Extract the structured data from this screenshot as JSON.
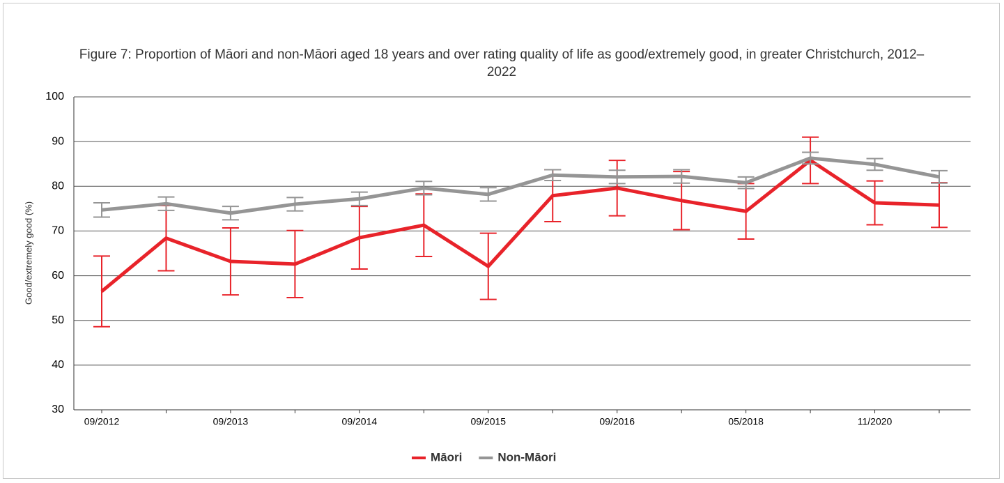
{
  "chart_data": {
    "type": "line",
    "title": "Figure 7: Proportion of Māori and non-Māori aged 18 years and over rating quality of life as good/extremely good, in greater Christchurch, 2012–2022",
    "ylabel": "Good/extremely good (%)",
    "categories": [
      "09/2012",
      null,
      "09/2013",
      null,
      "09/2014",
      null,
      "09/2015",
      null,
      "09/2016",
      null,
      "05/2018",
      null,
      "11/2020",
      null
    ],
    "ylim": [
      30,
      100
    ],
    "yticks": [
      30,
      40,
      50,
      60,
      70,
      80,
      90,
      100
    ],
    "grid": true,
    "legend": "bottom",
    "series": [
      {
        "name": "Māori",
        "color": "#e8232a",
        "values": [
          56.5,
          68.4,
          63.2,
          62.6,
          68.5,
          71.3,
          62.1,
          77.9,
          79.6,
          76.8,
          74.4,
          85.8,
          76.3,
          75.8
        ],
        "errors": [
          7.9,
          7.3,
          7.5,
          7.5,
          7.0,
          7.0,
          7.4,
          5.8,
          6.2,
          6.5,
          6.2,
          5.2,
          4.9,
          5.0
        ]
      },
      {
        "name": "Non-Māori",
        "color": "#959595",
        "values": [
          74.7,
          76.1,
          74.0,
          76.0,
          77.2,
          79.6,
          78.2,
          82.5,
          82.1,
          82.2,
          80.8,
          86.3,
          84.9,
          82.1
        ],
        "errors": [
          1.6,
          1.5,
          1.5,
          1.5,
          1.5,
          1.5,
          1.5,
          1.2,
          1.5,
          1.5,
          1.3,
          1.3,
          1.3,
          1.4
        ]
      }
    ]
  }
}
